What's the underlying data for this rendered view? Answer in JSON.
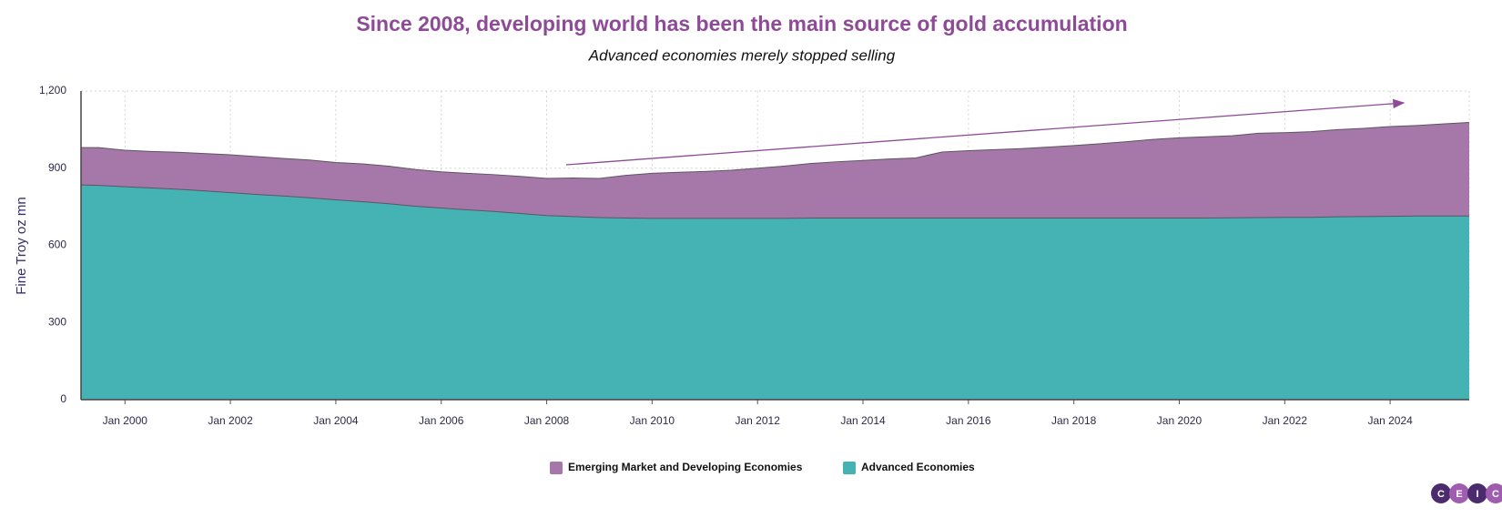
{
  "chart_data": {
    "type": "stacked_area",
    "title": "Since 2008, developing world has been the main source of gold accumulation",
    "subtitle": "Advanced economies merely stopped selling",
    "y_label": "Fine Troy oz mn",
    "x": [
      "1999-03",
      "1999-07",
      "2000-01",
      "2000-07",
      "2001-01",
      "2001-07",
      "2002-01",
      "2002-07",
      "2003-01",
      "2003-07",
      "2004-01",
      "2004-07",
      "2005-01",
      "2005-07",
      "2006-01",
      "2006-07",
      "2007-01",
      "2007-07",
      "2008-01",
      "2008-07",
      "2009-01",
      "2009-07",
      "2010-01",
      "2010-07",
      "2011-01",
      "2011-07",
      "2012-01",
      "2012-07",
      "2013-01",
      "2013-07",
      "2014-01",
      "2014-07",
      "2015-01",
      "2015-07",
      "2016-01",
      "2016-07",
      "2017-01",
      "2017-07",
      "2018-01",
      "2018-07",
      "2019-01",
      "2019-07",
      "2020-01",
      "2020-07",
      "2021-01",
      "2021-07",
      "2022-01",
      "2022-07",
      "2023-01",
      "2023-07",
      "2024-01",
      "2024-07",
      "2025-01",
      "2025-07"
    ],
    "series": [
      {
        "name": "Emerging Market and Developing Economies",
        "color": "#a678aa",
        "values": [
          145,
          147,
          142,
          142,
          144,
          145,
          147,
          147,
          146,
          147,
          145,
          147,
          146,
          143,
          141,
          142,
          143,
          144,
          144,
          150,
          152,
          166,
          175,
          179,
          182,
          187,
          195,
          203,
          212,
          219,
          224,
          230,
          234,
          257,
          262,
          266,
          270,
          276,
          282,
          289,
          297,
          306,
          312,
          316,
          319,
          328,
          329,
          333,
          339,
          343,
          349,
          352,
          358,
          364
        ]
      },
      {
        "name": "Advanced Economies",
        "color": "#45b3b4",
        "values": [
          835,
          833,
          828,
          823,
          818,
          812,
          805,
          798,
          792,
          785,
          777,
          770,
          762,
          752,
          745,
          738,
          732,
          724,
          716,
          712,
          708,
          706,
          705,
          705,
          705,
          705,
          705,
          705,
          706,
          706,
          706,
          706,
          706,
          706,
          706,
          706,
          706,
          706,
          706,
          706,
          706,
          706,
          706,
          706,
          707,
          708,
          709,
          709,
          711,
          712,
          713,
          714,
          714,
          714
        ]
      }
    ],
    "xlim": [
      "1999-03",
      "2025-07"
    ],
    "xticks": [
      {
        "value": "2000-01",
        "label": "Jan 2000"
      },
      {
        "value": "2002-01",
        "label": "Jan 2002"
      },
      {
        "value": "2004-01",
        "label": "Jan 2004"
      },
      {
        "value": "2006-01",
        "label": "Jan 2006"
      },
      {
        "value": "2008-01",
        "label": "Jan 2008"
      },
      {
        "value": "2010-01",
        "label": "Jan 2010"
      },
      {
        "value": "2012-01",
        "label": "Jan 2012"
      },
      {
        "value": "2014-01",
        "label": "Jan 2014"
      },
      {
        "value": "2016-01",
        "label": "Jan 2016"
      },
      {
        "value": "2018-01",
        "label": "Jan 2018"
      },
      {
        "value": "2020-01",
        "label": "Jan 2020"
      },
      {
        "value": "2022-01",
        "label": "Jan 2022"
      },
      {
        "value": "2024-01",
        "label": "Jan 2024"
      }
    ],
    "ylim": [
      0,
      1200
    ],
    "yticks": [
      0,
      300,
      600,
      900,
      {
        "value": 1200,
        "label": "1,200"
      }
    ],
    "grid": true
  },
  "logo": [
    "C",
    "E",
    "I",
    "C"
  ]
}
